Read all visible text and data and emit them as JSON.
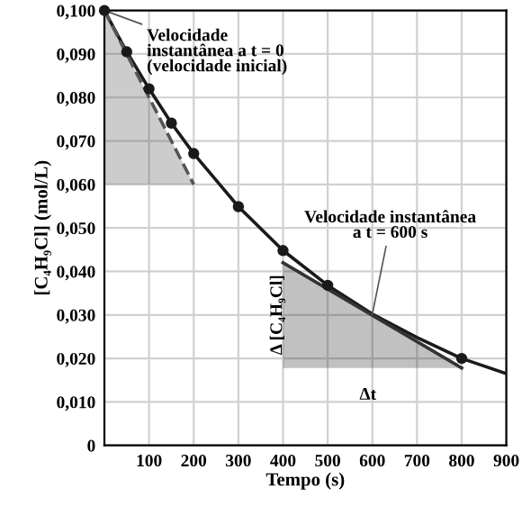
{
  "chart_data": {
    "type": "line",
    "xlabel": "Tempo (s)",
    "ylabel": "[C₄H₉Cl] (mol/L)",
    "xlim": [
      0,
      900
    ],
    "ylim": [
      0,
      0.1
    ],
    "xticks": [
      100,
      200,
      300,
      400,
      500,
      600,
      700,
      800,
      900
    ],
    "yticks": [
      {
        "value": 0,
        "label": "0"
      },
      {
        "value": 0.01,
        "label": "0,010"
      },
      {
        "value": 0.02,
        "label": "0,020"
      },
      {
        "value": 0.03,
        "label": "0,030"
      },
      {
        "value": 0.04,
        "label": "0,040"
      },
      {
        "value": 0.05,
        "label": "0,050"
      },
      {
        "value": 0.06,
        "label": "0,060"
      },
      {
        "value": 0.07,
        "label": "0,070"
      },
      {
        "value": 0.08,
        "label": "0,080"
      },
      {
        "value": 0.09,
        "label": "0,090"
      },
      {
        "value": 0.1,
        "label": "0,100"
      }
    ],
    "grid": true,
    "legend": false,
    "series": [
      {
        "color": "#1a1a1a",
        "marker": "none",
        "line_style": "solid",
        "x": [
          0,
          50,
          100,
          150,
          200,
          300,
          400,
          500,
          600,
          700,
          800,
          900
        ],
        "values": [
          0.1,
          0.0905,
          0.082,
          0.0741,
          0.0671,
          0.0549,
          0.0448,
          0.0368,
          0.0302,
          0.0248,
          0.02,
          0.0165
        ]
      },
      {
        "type": "scatter",
        "color": "#1a1a1a",
        "marker": "circle",
        "x": [
          0,
          50,
          100,
          150,
          200,
          300,
          400,
          500,
          800
        ],
        "values": [
          0.1,
          0.0905,
          0.082,
          0.0741,
          0.0671,
          0.0549,
          0.0448,
          0.0368,
          0.02
        ]
      },
      {
        "type": "line",
        "color": "#555555",
        "marker": "none",
        "line_style": "dashed",
        "x": [
          0,
          200
        ],
        "values": [
          0.1,
          0.06
        ],
        "lower": [
          0.06,
          0.06
        ],
        "upper": [
          0.1,
          0.06
        ]
      },
      {
        "type": "line",
        "color": "#333333",
        "marker": "none",
        "line_style": "solid",
        "x": [
          400,
          800
        ],
        "values": [
          0.042,
          0.0178
        ],
        "lower": [
          0.0178,
          0.0178
        ],
        "upper": [
          0.042,
          0.0178
        ]
      }
    ],
    "annotations": [
      {
        "text": "Velocidade\ninstantânea a t = 0\n(velocidade inicial)",
        "x": 0,
        "y": 0.1
      },
      {
        "text": "Velocidade instantânea\na t = 600 s",
        "x": 600,
        "y": 0.0302
      },
      "Δ [C₄H₉Cl]",
      "Δt"
    ]
  }
}
